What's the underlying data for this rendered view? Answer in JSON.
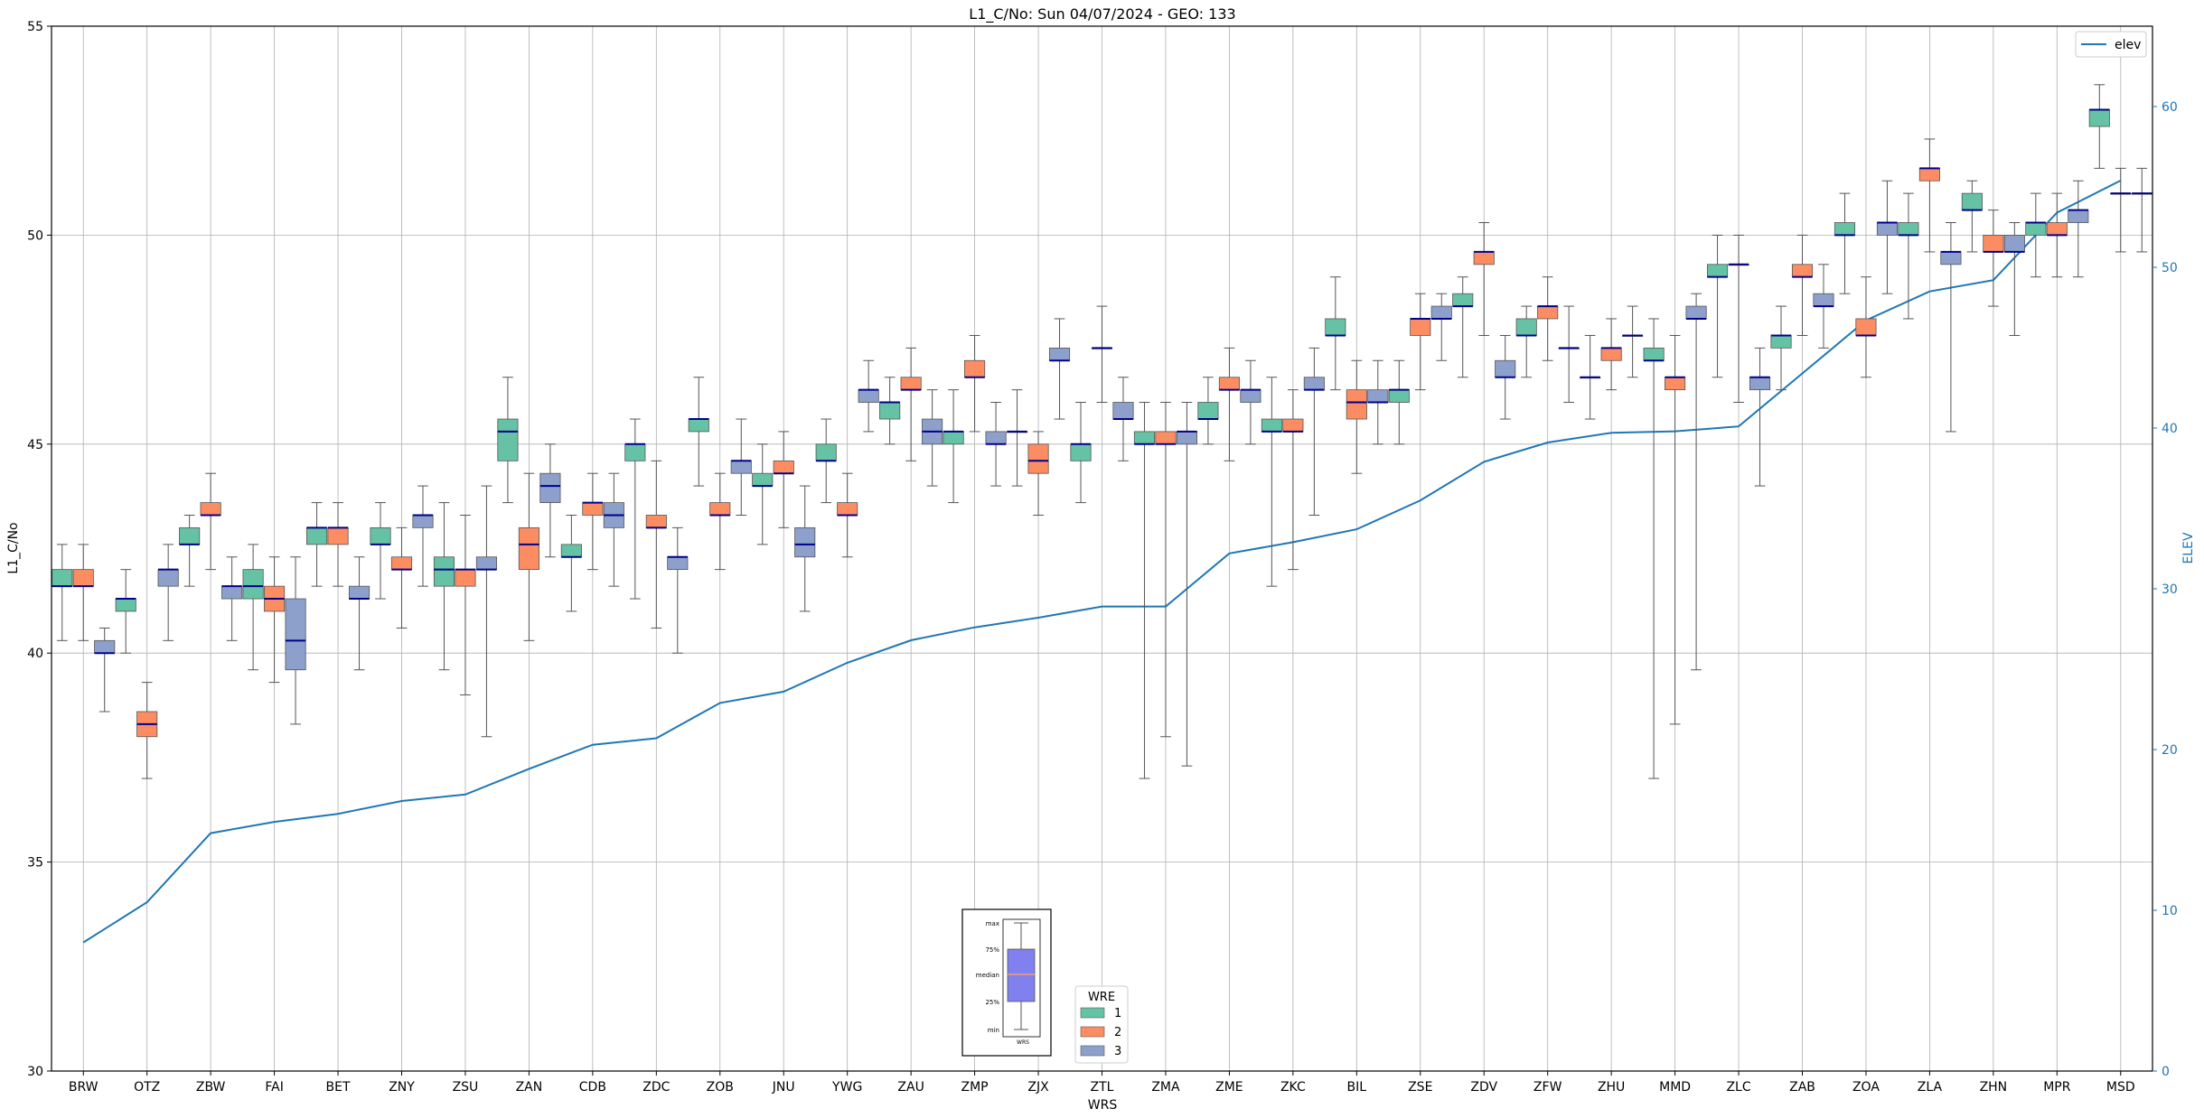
{
  "chart_data": {
    "type": "box",
    "title": "L1_C/No: Sun 04/07/2024 - GEO: 133",
    "xlabel": "WRS",
    "ylabel": "L1_C/No",
    "y2label": "ELEV",
    "ylim": [
      30,
      55
    ],
    "y2lim": [
      0,
      65
    ],
    "yticks": [
      "30",
      "35",
      "40",
      "45",
      "50",
      "55"
    ],
    "y2ticks": [
      "0",
      "10",
      "20",
      "30",
      "40",
      "50",
      "60"
    ],
    "grid": true,
    "categories": [
      "BRW",
      "OTZ",
      "ZBW",
      "FAI",
      "BET",
      "ZNY",
      "ZSU",
      "ZAN",
      "CDB",
      "ZDC",
      "ZOB",
      "JNU",
      "YWG",
      "ZAU",
      "ZMP",
      "ZJX",
      "ZTL",
      "ZMA",
      "ZME",
      "ZKC",
      "BIL",
      "ZSE",
      "ZDV",
      "ZFW",
      "ZHU",
      "MMD",
      "ZLC",
      "ZAB",
      "ZOA",
      "ZLA",
      "ZHN",
      "MPR",
      "MSD"
    ],
    "hue_title": "WRE",
    "hue_colors": {
      "1": "#66c2a5",
      "2": "#fc8d62",
      "3": "#8da0cb"
    },
    "median_color": "#00008b",
    "hue_levels": [
      "1",
      "2",
      "3"
    ],
    "box_stats_order": [
      "min",
      "q1",
      "median",
      "q3",
      "max"
    ],
    "boxes": [
      [
        [
          40.3,
          41.6,
          41.6,
          42.0,
          42.6
        ],
        [
          40.3,
          41.6,
          41.6,
          42.0,
          42.6
        ],
        [
          38.6,
          40.0,
          40.0,
          40.3,
          40.6
        ]
      ],
      [
        [
          40.0,
          41.0,
          41.3,
          41.3,
          42.0
        ],
        [
          37.0,
          38.0,
          38.3,
          38.6,
          39.3
        ],
        [
          40.3,
          41.6,
          42.0,
          42.0,
          42.6
        ]
      ],
      [
        [
          41.6,
          42.6,
          42.6,
          43.0,
          43.3
        ],
        [
          42.0,
          43.3,
          43.3,
          43.6,
          44.3
        ],
        [
          40.3,
          41.3,
          41.6,
          41.6,
          42.3
        ]
      ],
      [
        [
          39.6,
          41.3,
          41.6,
          42.0,
          42.6
        ],
        [
          39.3,
          41.0,
          41.3,
          41.6,
          42.3
        ],
        [
          38.3,
          39.6,
          40.3,
          41.3,
          42.3
        ]
      ],
      [
        [
          41.6,
          42.6,
          43.0,
          43.0,
          43.6
        ],
        [
          41.6,
          42.6,
          43.0,
          43.0,
          43.6
        ],
        [
          39.6,
          41.3,
          41.3,
          41.6,
          42.3
        ]
      ],
      [
        [
          41.3,
          42.6,
          42.6,
          43.0,
          43.6
        ],
        [
          40.6,
          42.0,
          42.0,
          42.3,
          43.0
        ],
        [
          41.6,
          43.0,
          43.3,
          43.3,
          44.0
        ]
      ],
      [
        [
          39.6,
          41.6,
          42.0,
          42.3,
          43.6
        ],
        [
          39.0,
          41.6,
          42.0,
          42.0,
          43.3
        ],
        [
          38.0,
          42.0,
          42.0,
          42.3,
          44.0
        ]
      ],
      [
        [
          43.6,
          44.6,
          45.3,
          45.6,
          46.6
        ],
        [
          40.3,
          42.0,
          42.6,
          43.0,
          44.3
        ],
        [
          42.3,
          43.6,
          44.0,
          44.3,
          45.0
        ]
      ],
      [
        [
          41.0,
          42.3,
          42.3,
          42.6,
          43.3
        ],
        [
          42.0,
          43.3,
          43.6,
          43.6,
          44.3
        ],
        [
          41.6,
          43.0,
          43.3,
          43.6,
          44.3
        ]
      ],
      [
        [
          41.3,
          44.6,
          45.0,
          45.0,
          45.6
        ],
        [
          40.6,
          43.0,
          43.0,
          43.3,
          44.6
        ],
        [
          40.0,
          42.0,
          42.3,
          42.3,
          43.0
        ]
      ],
      [
        [
          44.0,
          45.3,
          45.6,
          45.6,
          46.6
        ],
        [
          42.0,
          43.3,
          43.3,
          43.6,
          44.3
        ],
        [
          43.3,
          44.3,
          44.6,
          44.6,
          45.6
        ]
      ],
      [
        [
          42.6,
          44.0,
          44.0,
          44.3,
          45.0
        ],
        [
          43.0,
          44.3,
          44.3,
          44.6,
          45.3
        ],
        [
          41.0,
          42.3,
          42.6,
          43.0,
          44.0
        ]
      ],
      [
        [
          43.6,
          44.6,
          44.6,
          45.0,
          45.6
        ],
        [
          42.3,
          43.3,
          43.3,
          43.6,
          44.3
        ],
        [
          45.3,
          46.0,
          46.3,
          46.3,
          47.0
        ]
      ],
      [
        [
          45.0,
          45.6,
          46.0,
          46.0,
          46.6
        ],
        [
          44.6,
          46.3,
          46.3,
          46.6,
          47.3
        ],
        [
          44.0,
          45.0,
          45.3,
          45.6,
          46.3
        ]
      ],
      [
        [
          43.6,
          45.0,
          45.3,
          45.3,
          46.3
        ],
        [
          45.3,
          46.6,
          46.6,
          47.0,
          47.6
        ],
        [
          44.0,
          45.0,
          45.0,
          45.3,
          46.0
        ]
      ],
      [
        [
          44.0,
          45.3,
          45.3,
          45.3,
          46.3
        ],
        [
          43.3,
          44.3,
          44.6,
          45.0,
          45.3
        ],
        [
          45.6,
          47.0,
          47.0,
          47.3,
          48.0
        ]
      ],
      [
        [
          43.6,
          44.6,
          45.0,
          45.0,
          46.0
        ],
        [
          46.0,
          47.3,
          47.3,
          47.3,
          48.3
        ],
        [
          44.6,
          45.6,
          45.6,
          46.0,
          46.6
        ]
      ],
      [
        [
          37.0,
          45.0,
          45.0,
          45.3,
          46.0
        ],
        [
          38.0,
          45.0,
          45.0,
          45.3,
          46.0
        ],
        [
          37.3,
          45.0,
          45.3,
          45.3,
          46.0
        ]
      ],
      [
        [
          45.0,
          45.6,
          45.6,
          46.0,
          46.6
        ],
        [
          44.6,
          46.3,
          46.3,
          46.6,
          47.3
        ],
        [
          45.0,
          46.0,
          46.3,
          46.3,
          47.0
        ]
      ],
      [
        [
          41.6,
          45.3,
          45.3,
          45.6,
          46.6
        ],
        [
          42.0,
          45.3,
          45.3,
          45.6,
          46.3
        ],
        [
          43.3,
          46.3,
          46.3,
          46.6,
          47.3
        ]
      ],
      [
        [
          46.3,
          47.6,
          47.6,
          48.0,
          49.0
        ],
        [
          44.3,
          45.6,
          46.0,
          46.3,
          47.0
        ],
        [
          45.0,
          46.0,
          46.0,
          46.3,
          47.0
        ]
      ],
      [
        [
          45.0,
          46.0,
          46.3,
          46.3,
          47.0
        ],
        [
          46.3,
          47.6,
          48.0,
          48.0,
          48.6
        ],
        [
          47.0,
          48.0,
          48.0,
          48.3,
          48.6
        ]
      ],
      [
        [
          46.6,
          48.3,
          48.3,
          48.6,
          49.0
        ],
        [
          47.6,
          49.3,
          49.6,
          49.6,
          50.3
        ],
        [
          45.6,
          46.6,
          46.6,
          47.0,
          47.6
        ]
      ],
      [
        [
          46.6,
          47.6,
          47.6,
          48.0,
          48.3
        ],
        [
          47.0,
          48.0,
          48.3,
          48.3,
          49.0
        ],
        [
          46.0,
          47.3,
          47.3,
          47.3,
          48.3
        ]
      ],
      [
        [
          45.6,
          46.6,
          46.6,
          46.6,
          47.6
        ],
        [
          46.3,
          47.0,
          47.3,
          47.3,
          48.0
        ],
        [
          46.6,
          47.6,
          47.6,
          47.6,
          48.3
        ]
      ],
      [
        [
          37.0,
          47.0,
          47.0,
          47.3,
          48.0
        ],
        [
          38.3,
          46.3,
          46.6,
          46.6,
          47.6
        ],
        [
          39.6,
          48.0,
          48.0,
          48.3,
          48.6
        ]
      ],
      [
        [
          46.6,
          49.0,
          49.0,
          49.3,
          50.0
        ],
        [
          46.0,
          49.3,
          49.3,
          49.3,
          50.0
        ],
        [
          44.0,
          46.3,
          46.6,
          46.6,
          47.3
        ]
      ],
      [
        [
          46.3,
          47.3,
          47.6,
          47.6,
          48.3
        ],
        [
          47.6,
          49.0,
          49.0,
          49.3,
          50.0
        ],
        [
          47.3,
          48.3,
          48.3,
          48.6,
          49.3
        ]
      ],
      [
        [
          48.6,
          50.0,
          50.0,
          50.3,
          51.0
        ],
        [
          46.6,
          47.6,
          47.6,
          48.0,
          49.0
        ],
        [
          48.6,
          50.0,
          50.3,
          50.3,
          51.3
        ]
      ],
      [
        [
          48.0,
          50.0,
          50.0,
          50.3,
          51.0
        ],
        [
          49.6,
          51.3,
          51.6,
          51.6,
          52.3
        ],
        [
          45.3,
          49.3,
          49.6,
          49.6,
          50.3
        ]
      ],
      [
        [
          49.6,
          50.6,
          50.6,
          51.0,
          51.3
        ],
        [
          48.3,
          49.6,
          49.6,
          50.0,
          50.6
        ],
        [
          47.6,
          49.6,
          49.6,
          50.0,
          50.3
        ]
      ],
      [
        [
          49.0,
          50.0,
          50.3,
          50.3,
          51.0
        ],
        [
          49.0,
          50.0,
          50.0,
          50.3,
          51.0
        ],
        [
          49.0,
          50.3,
          50.6,
          50.6,
          51.3
        ]
      ],
      [
        [
          51.6,
          52.6,
          53.0,
          53.0,
          53.6
        ],
        [
          49.6,
          51.0,
          51.0,
          51.0,
          51.6
        ],
        [
          49.6,
          51.0,
          51.0,
          51.0,
          51.6
        ]
      ]
    ],
    "elev_series": {
      "name": "elev",
      "color": "#1f77b4",
      "values": [
        8.0,
        10.5,
        14.8,
        15.5,
        16.0,
        16.8,
        17.2,
        18.8,
        20.3,
        20.7,
        22.9,
        23.6,
        25.4,
        26.8,
        27.6,
        28.2,
        28.9,
        28.9,
        32.2,
        32.9,
        33.7,
        35.5,
        37.9,
        39.1,
        39.7,
        39.8,
        40.1,
        43.4,
        46.7,
        48.5,
        49.2,
        53.4,
        55.4
      ]
    },
    "legend": {
      "series": "elev",
      "position": "top-right"
    },
    "inset_key": {
      "labels": [
        "max",
        "75%",
        "median",
        "25%",
        "min"
      ],
      "xlabel": "WRS"
    }
  }
}
